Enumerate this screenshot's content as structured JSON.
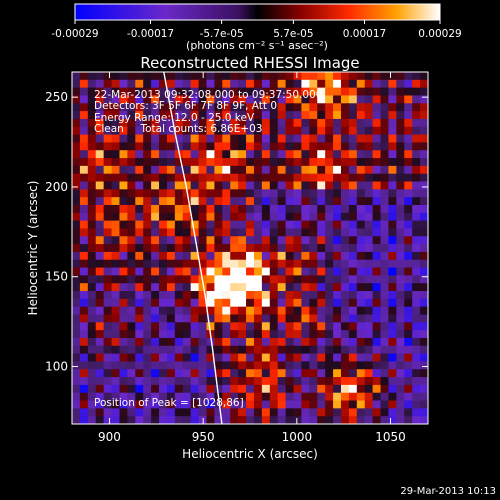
{
  "chart_data": {
    "type": "heatmap",
    "title": "Reconstructed RHESSI Image",
    "xlabel": "Heliocentric X (arcsec)",
    "ylabel": "Heliocentric Y (arcsec)",
    "xlim": [
      880,
      1070
    ],
    "ylim": [
      68,
      264
    ],
    "x_ticks": [
      900,
      950,
      1000,
      1050
    ],
    "y_ticks": [
      100,
      150,
      200,
      250
    ],
    "colorbar": {
      "ticks": [
        "-0.00029",
        "-0.00017",
        "-5.7e-05",
        "5.7e-05",
        "0.00017",
        "0.00029"
      ],
      "tick_values": [
        -0.00029,
        -0.00017,
        -5.7e-05,
        5.7e-05,
        0.00017,
        0.00029
      ],
      "range": [
        -0.00029,
        0.00029
      ],
      "units": "(photons cm⁻² s⁻¹ asec⁻²)"
    },
    "annotations": {
      "time": "22-Mar-2013 09:32:08.000 to 09:37:50.000",
      "detectors": "Detectors: 3F 5F 6F 7F 8F 9F, Att 0",
      "energy": "Energy Range: 12.0 - 25.0 keV",
      "method": "Clean     Total counts: 6.86E+03",
      "peak": "Position of Peak = [1028,86]"
    },
    "limb": [
      [
        929,
        264
      ],
      [
        935,
        230
      ],
      [
        941,
        200
      ],
      [
        946,
        170
      ],
      [
        951,
        140
      ],
      [
        955,
        110
      ],
      [
        960,
        68
      ]
    ],
    "sources": [
      {
        "x": 1028,
        "y": 86,
        "value": 0.00029
      },
      {
        "x": 1015,
        "y": 255,
        "value": 0.00022
      },
      {
        "x": 972,
        "y": 150,
        "value": 0.00024
      },
      {
        "x": 958,
        "y": 142,
        "value": 0.00021
      },
      {
        "x": 1002,
        "y": 126,
        "value": 0.00019
      },
      {
        "x": 1000,
        "y": 160,
        "value": 0.00016
      },
      {
        "x": 1015,
        "y": 210,
        "value": 0.00015
      },
      {
        "x": 960,
        "y": 214,
        "value": 0.00015
      },
      {
        "x": 938,
        "y": 190,
        "value": 0.00012
      },
      {
        "x": 905,
        "y": 180,
        "value": 0.00011
      },
      {
        "x": 985,
        "y": 95,
        "value": 0.00012
      },
      {
        "x": 900,
        "y": 120,
        "value": 0.0001
      },
      {
        "x": 895,
        "y": 215,
        "value": 0.0001
      }
    ]
  },
  "footer": {
    "timestamp": "29-Mar-2013 10:13"
  }
}
